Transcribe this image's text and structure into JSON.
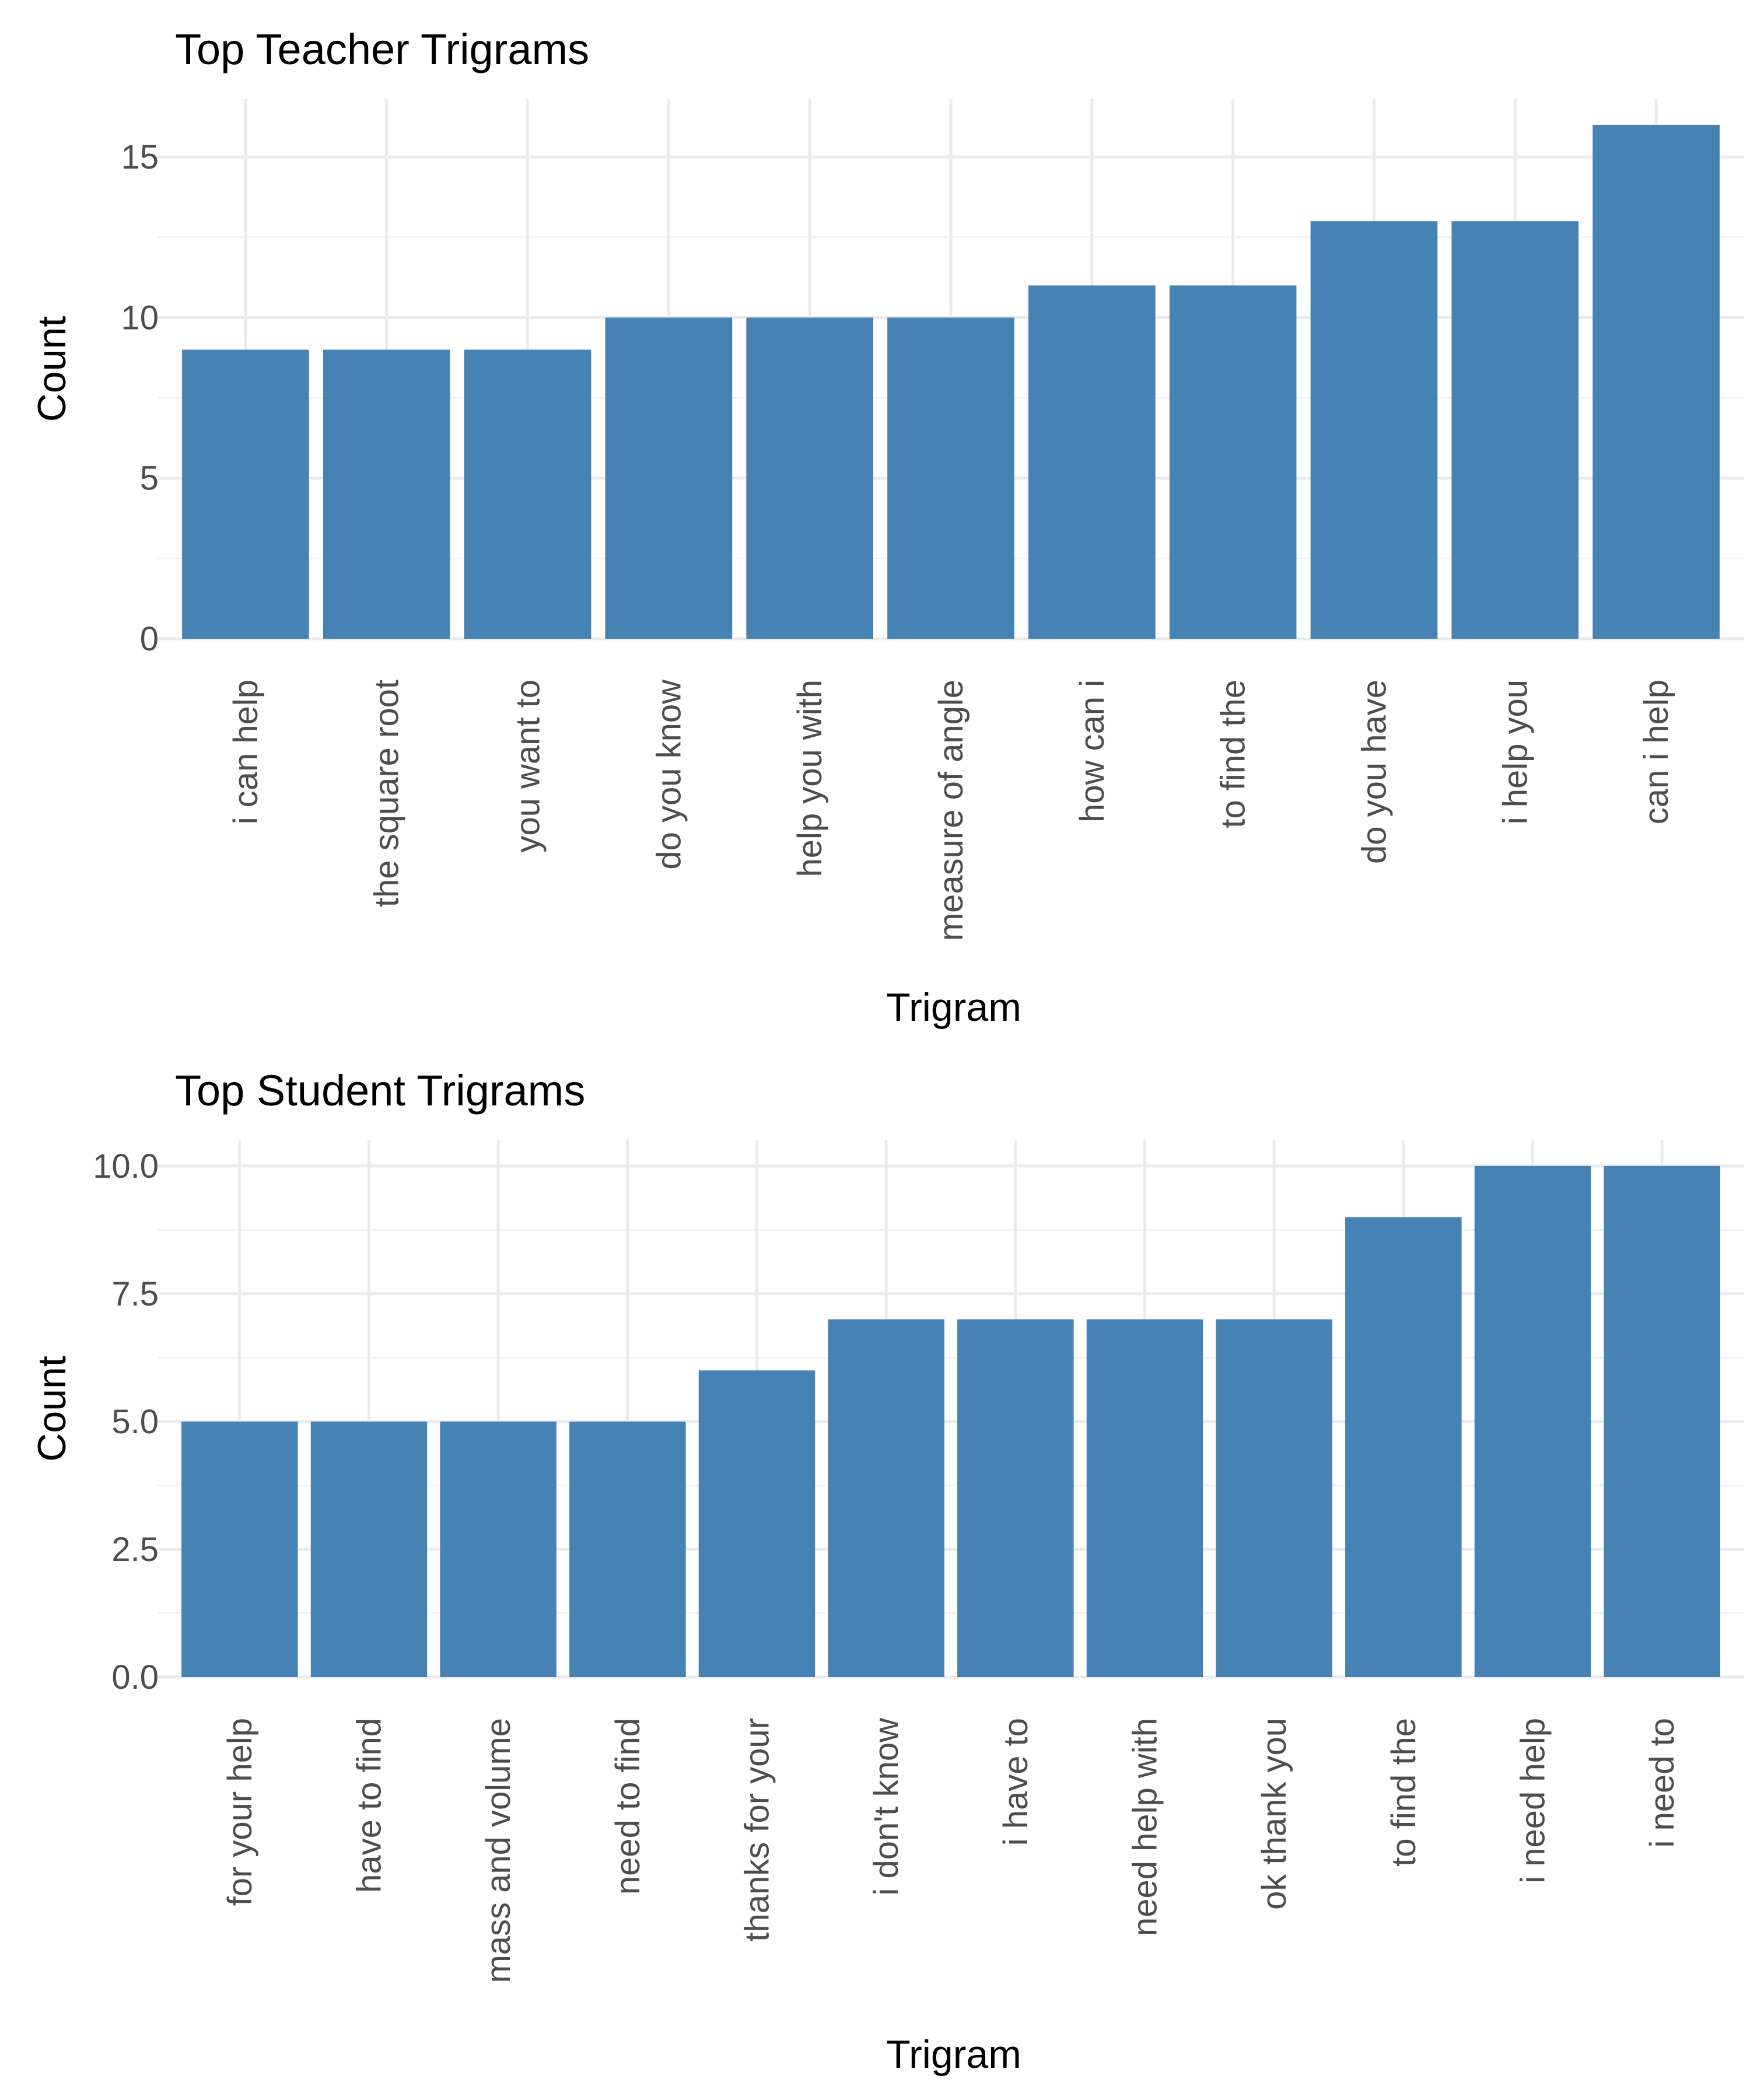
{
  "colors": {
    "bar": "#4682b4",
    "grid_major": "#ebebeb",
    "grid_minor": "#f3f3f3",
    "tick_text": "#4d4d4d"
  },
  "chart_data": [
    {
      "type": "bar",
      "title": "Top Teacher Trigrams",
      "xlabel": "Trigram",
      "ylabel": "Count",
      "ylim": [
        0,
        16.8
      ],
      "yticks": [
        0,
        5,
        10,
        15
      ],
      "ytick_labels": [
        "0",
        "5",
        "10",
        "15"
      ],
      "grid": true,
      "categories": [
        "i can help",
        "the square root",
        "you want to",
        "do you know",
        "help you with",
        "measure of angle",
        "how can i",
        "to find the",
        "do you have",
        "i help you",
        "can i help"
      ],
      "values": [
        9,
        9,
        9,
        10,
        10,
        10,
        11,
        11,
        13,
        13,
        16
      ]
    },
    {
      "type": "bar",
      "title": "Top Student Trigrams",
      "xlabel": "Trigram",
      "ylabel": "Count",
      "ylim": [
        0,
        10.5
      ],
      "yticks": [
        0,
        2.5,
        5,
        7.5,
        10
      ],
      "ytick_labels": [
        "0.0",
        "2.5",
        "5.0",
        "7.5",
        "10.0"
      ],
      "grid": true,
      "categories": [
        "for your help",
        "have to find",
        "mass and volume",
        "need to find",
        "thanks for your",
        "i don't know",
        "i have to",
        "need help with",
        "ok thank you",
        "to find the",
        "i need help",
        "i need to"
      ],
      "values": [
        5,
        5,
        5,
        5,
        6,
        7,
        7,
        7,
        7,
        9,
        10,
        10
      ]
    }
  ]
}
